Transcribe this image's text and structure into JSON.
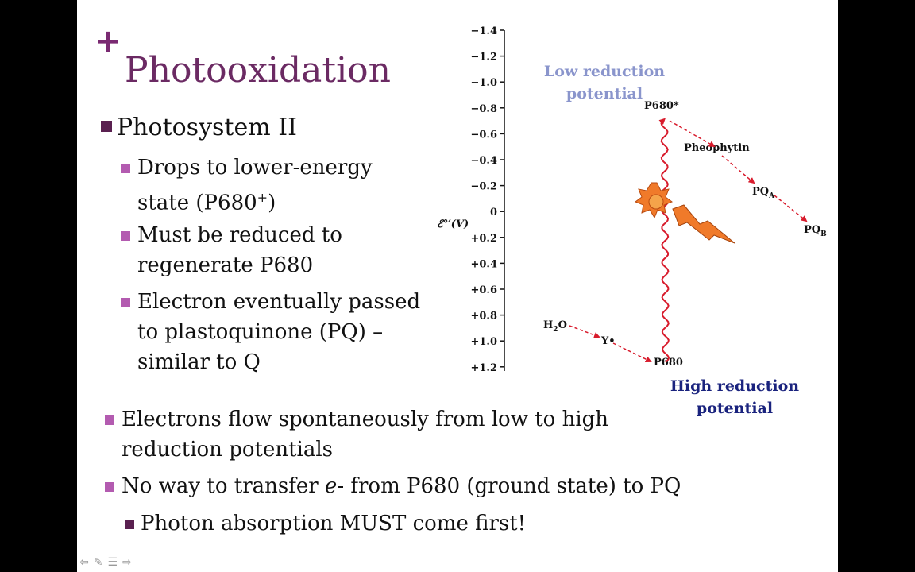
{
  "slide": {
    "plus": "+",
    "title": "Photooxidation",
    "heading": "Photosystem II",
    "bullets": [
      {
        "line1": "Drops to lower-energy",
        "line2_pre": "state (P680",
        "line2_sup": "+",
        "line2_post": ")"
      },
      {
        "line1": "Must be reduced to",
        "line2": "regenerate P680"
      },
      {
        "line1": "Electron eventually passed",
        "line2": "to plastoquinone (PQ) –",
        "line3": "similar to Q"
      }
    ],
    "bottom": {
      "b1_line1": "Electrons flow spontaneously from low to high",
      "b1_line2": "reduction potentials",
      "b2_pre": "No way to transfer ",
      "b2_em": "e",
      "b2_post": "- from P680 (ground state) to PQ",
      "b3": "Photon absorption MUST come first!"
    }
  },
  "figure": {
    "axis_ticks": [
      "−1.4",
      "−1.2",
      "−1.0",
      "−0.8",
      "−0.6",
      "−0.4",
      "−0.2",
      "0",
      "+0.2",
      "+0.4",
      "+0.6",
      "+0.8",
      "+1.0",
      "+1.2"
    ],
    "axis_label": "ℰ°′(V)",
    "low_label_1": "Low reduction",
    "low_label_2": "potential",
    "high_label_1": "High reduction",
    "high_label_2": "potential",
    "p680_star": "P680*",
    "pheophytin": "Pheophytin",
    "pqa": "PQ",
    "pqa_sub": "A",
    "pqb": "PQ",
    "pqb_sub": "B",
    "h2o": "H",
    "h2o_sub": "2",
    "h2o_post": "O",
    "y": "Y•",
    "p680": "P680",
    "colors": {
      "arrow": "#d81b2c",
      "low": "#8a95cc",
      "high": "#1a237e",
      "sun": "#f07a2a"
    }
  },
  "nav": {
    "icons": [
      "prev-arrow-icon",
      "pen-icon",
      "menu-icon",
      "next-arrow-icon"
    ],
    "glyphs": [
      "⇦",
      "✎",
      "☰",
      "⇨"
    ]
  }
}
